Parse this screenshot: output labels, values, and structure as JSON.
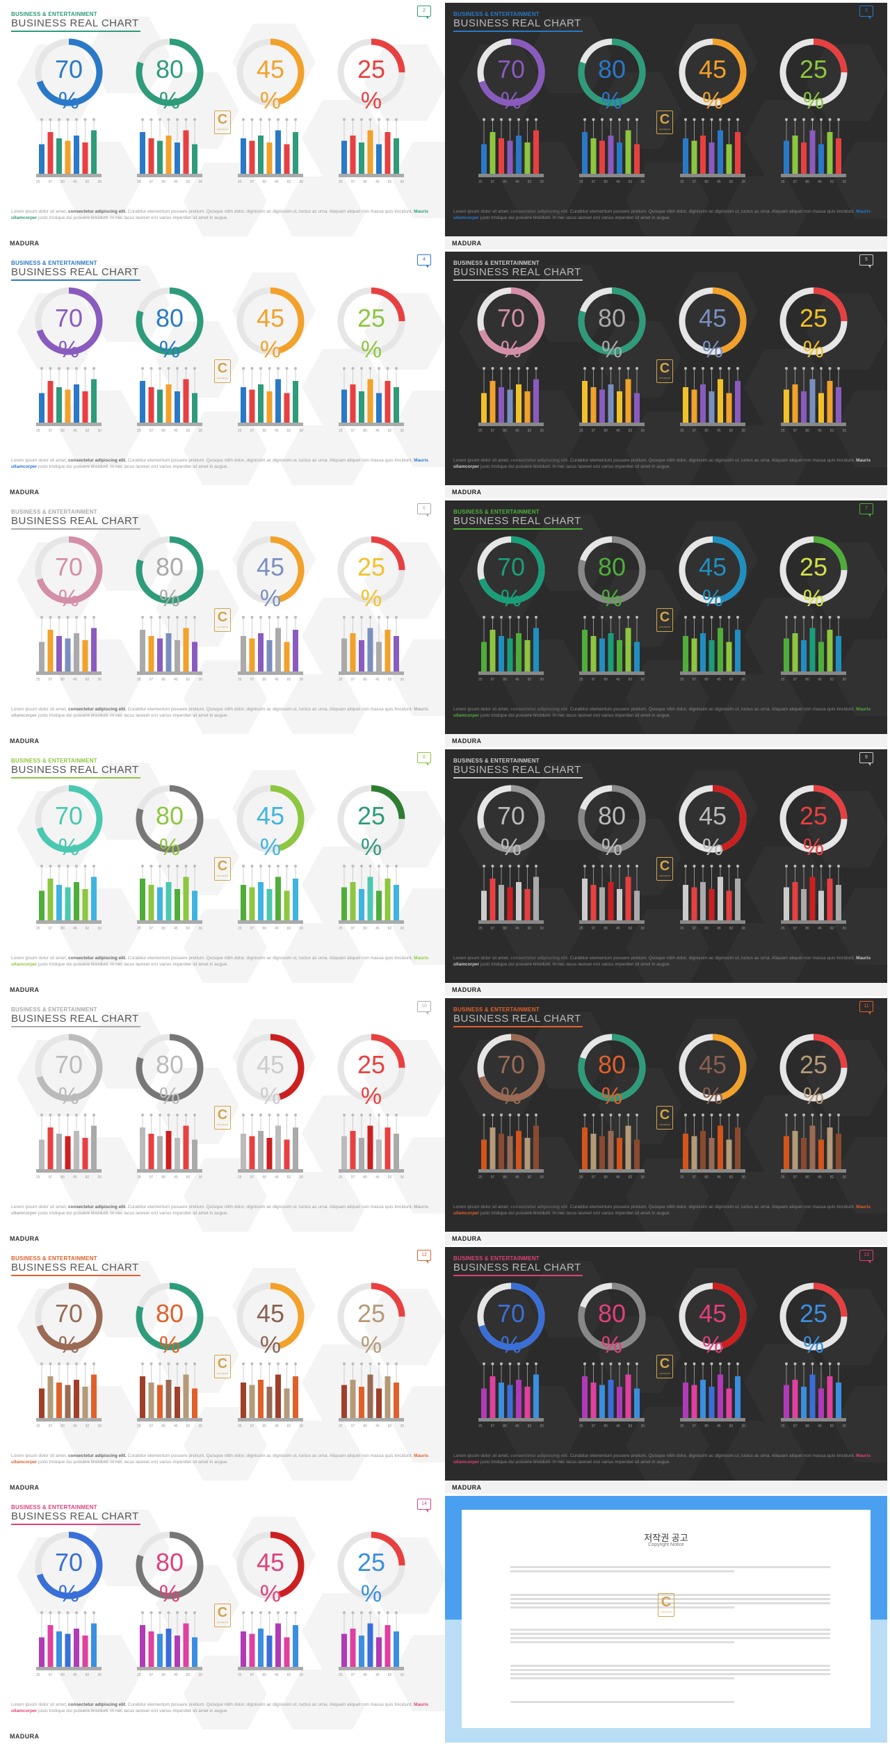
{
  "common": {
    "kicker": "BUSINESS & ENTERTAINMENT",
    "title": "BUSINESS REAL CHART",
    "percent_symbol": "%",
    "brand": "MADURA",
    "badge_letter": "C",
    "badge_text": "CONTENTS",
    "lorem_part1": "Lorem ipsum dolor sit amet, ",
    "lorem_bold1": "consectetur adipiscing elit.",
    "lorem_part2": " Curabitur elementum posuere pretium. Quisque nibh dolor, dignissim ac dignissim ut, luctus ac urna. Aliquam aliquet non massa quis tincidunt. ",
    "lorem_bold2": "Mauris ullamcorper",
    "lorem_part3": " justo tristique dui posuere tincidunt. In nec lacus laoreet orci varius imperdiet sit amet in augue.",
    "ticks": [
      "25",
      "97",
      "80",
      "45",
      "82",
      "30"
    ],
    "bar_values": [
      0.45,
      0.8,
      0.62,
      0.55,
      0.7,
      0.5,
      0.85
    ]
  },
  "slides": [
    {
      "num": "2",
      "theme": "light",
      "accent": "#2e9b7a",
      "values": [
        70,
        80,
        45,
        25
      ],
      "colors": [
        "#2979c8",
        "#2e9b7a",
        "#f2a12a",
        "#e84040"
      ],
      "bars": [
        "#2979c8",
        "#e84040",
        "#2e9b7a",
        "#f2a12a"
      ]
    },
    {
      "num": "3",
      "theme": "dark",
      "accent": "#2979c8",
      "values": [
        70,
        80,
        45,
        25
      ],
      "colors": [
        "#8a5bbf",
        "#2e9b7a",
        "#f2a12a",
        "#e84040"
      ],
      "num_colors": [
        "#8a5bbf",
        "#2979c8",
        "#f2a12a",
        "#8dc63f"
      ],
      "bars": [
        "#2979c8",
        "#8dc63f",
        "#e84040",
        "#8a5bbf"
      ]
    },
    {
      "num": "4",
      "theme": "light",
      "accent": "#2979c8",
      "values": [
        70,
        80,
        45,
        25
      ],
      "colors": [
        "#8a5bbf",
        "#2e9b7a",
        "#f2a12a",
        "#e84040"
      ],
      "num_colors": [
        "#8a5bbf",
        "#2979c8",
        "#f2a12a",
        "#8dc63f"
      ],
      "bars": [
        "#2979c8",
        "#e84040",
        "#2e9b7a",
        "#f2a12a"
      ]
    },
    {
      "num": "5",
      "theme": "dark",
      "accent": "#cccccc",
      "values": [
        70,
        80,
        45,
        25
      ],
      "colors": [
        "#d48fa8",
        "#2e9b7a",
        "#f2a12a",
        "#e84040"
      ],
      "num_colors": [
        "#d48fa8",
        "#aaaaaa",
        "#7a8fbf",
        "#f2c12a"
      ],
      "bars": [
        "#f2c12a",
        "#f2a12a",
        "#8a5bbf",
        "#7a8fbf"
      ]
    },
    {
      "num": "6",
      "theme": "light",
      "accent": "#aaaaaa",
      "values": [
        70,
        80,
        45,
        25
      ],
      "colors": [
        "#d48fa8",
        "#2e9b7a",
        "#f2a12a",
        "#e84040"
      ],
      "num_colors": [
        "#d48fa8",
        "#aaaaaa",
        "#7a8fbf",
        "#f2c12a"
      ],
      "bars": [
        "#aaaaaa",
        "#f2a12a",
        "#8a5bbf",
        "#7a8fbf"
      ]
    },
    {
      "num": "7",
      "theme": "dark",
      "accent": "#4fae3a",
      "values": [
        70,
        80,
        45,
        25
      ],
      "colors": [
        "#1a9e7a",
        "#888888",
        "#1f8fc0",
        "#4fae3a"
      ],
      "num_colors": [
        "#1a9e7a",
        "#4fae3a",
        "#1f8fc0",
        "#d4e04a"
      ],
      "bars": [
        "#4fae3a",
        "#8dc63f",
        "#1f8fc0",
        "#1a9e7a"
      ]
    },
    {
      "num": "8",
      "theme": "light",
      "accent": "#8dc63f",
      "values": [
        70,
        80,
        45,
        25
      ],
      "colors": [
        "#4ac8b0",
        "#777777",
        "#8dc63f",
        "#2e7d32"
      ],
      "num_colors": [
        "#4ac8b0",
        "#8dc63f",
        "#3fb4e0",
        "#2e9b7a"
      ],
      "bars": [
        "#4fae3a",
        "#8dc63f",
        "#3fb4e0",
        "#4ac8b0"
      ]
    },
    {
      "num": "9",
      "theme": "dark",
      "accent": "#cccccc",
      "values": [
        70,
        80,
        45,
        25
      ],
      "colors": [
        "#999999",
        "#888888",
        "#cc2020",
        "#e84040"
      ],
      "num_colors": [
        "#bbbbbb",
        "#bbbbbb",
        "#bbbbbb",
        "#e84040"
      ],
      "bars": [
        "#cccccc",
        "#e84040",
        "#aaaaaa",
        "#cc2020"
      ]
    },
    {
      "num": "10",
      "theme": "light",
      "accent": "#aaaaaa",
      "values": [
        70,
        80,
        45,
        25
      ],
      "colors": [
        "#bbbbbb",
        "#777777",
        "#cc2020",
        "#e84040"
      ],
      "num_colors": [
        "#bbbbbb",
        "#bbbbbb",
        "#cccccc",
        "#e84040"
      ],
      "bars": [
        "#bbbbbb",
        "#e84040",
        "#aaaaaa",
        "#cc2020"
      ]
    },
    {
      "num": "11",
      "theme": "dark",
      "accent": "#e0602a",
      "values": [
        70,
        80,
        45,
        25
      ],
      "colors": [
        "#9a6a54",
        "#2e9b7a",
        "#f2a12a",
        "#e84040"
      ],
      "num_colors": [
        "#9a6a54",
        "#e0602a",
        "#8a6050",
        "#b49a78"
      ],
      "bars": [
        "#d4541a",
        "#b49a78",
        "#8a4a30",
        "#9a6a54"
      ]
    },
    {
      "num": "12",
      "theme": "light",
      "accent": "#e0602a",
      "values": [
        70,
        80,
        45,
        25
      ],
      "colors": [
        "#9a6a54",
        "#2e9b7a",
        "#f2a12a",
        "#e84040"
      ],
      "num_colors": [
        "#9a6a54",
        "#e0602a",
        "#8a6050",
        "#b49a78"
      ],
      "bars": [
        "#a0402a",
        "#b49a78",
        "#e0602a",
        "#9a6a54"
      ]
    },
    {
      "num": "13",
      "theme": "dark",
      "accent": "#e0407a",
      "values": [
        70,
        80,
        45,
        25
      ],
      "colors": [
        "#3a6fd8",
        "#888888",
        "#cc2020",
        "#e84040"
      ],
      "num_colors": [
        "#3a6fd8",
        "#e0407a",
        "#e0407a",
        "#3a8fe0"
      ],
      "bars": [
        "#b03ab8",
        "#e040a0",
        "#3a8fe0",
        "#3a6fd8"
      ]
    },
    {
      "num": "14",
      "theme": "light",
      "accent": "#e0407a",
      "values": [
        70,
        80,
        45,
        25
      ],
      "colors": [
        "#3a6fd8",
        "#777777",
        "#cc2020",
        "#e84040"
      ],
      "num_colors": [
        "#3a6fd8",
        "#e0407a",
        "#e0407a",
        "#3a8fe0"
      ],
      "bars": [
        "#b03ab8",
        "#e040a0",
        "#3a8fe0",
        "#3a6fd8"
      ]
    }
  ],
  "copyright": {
    "title": "저작권 공고",
    "subtitle": "Copyright Notice"
  }
}
